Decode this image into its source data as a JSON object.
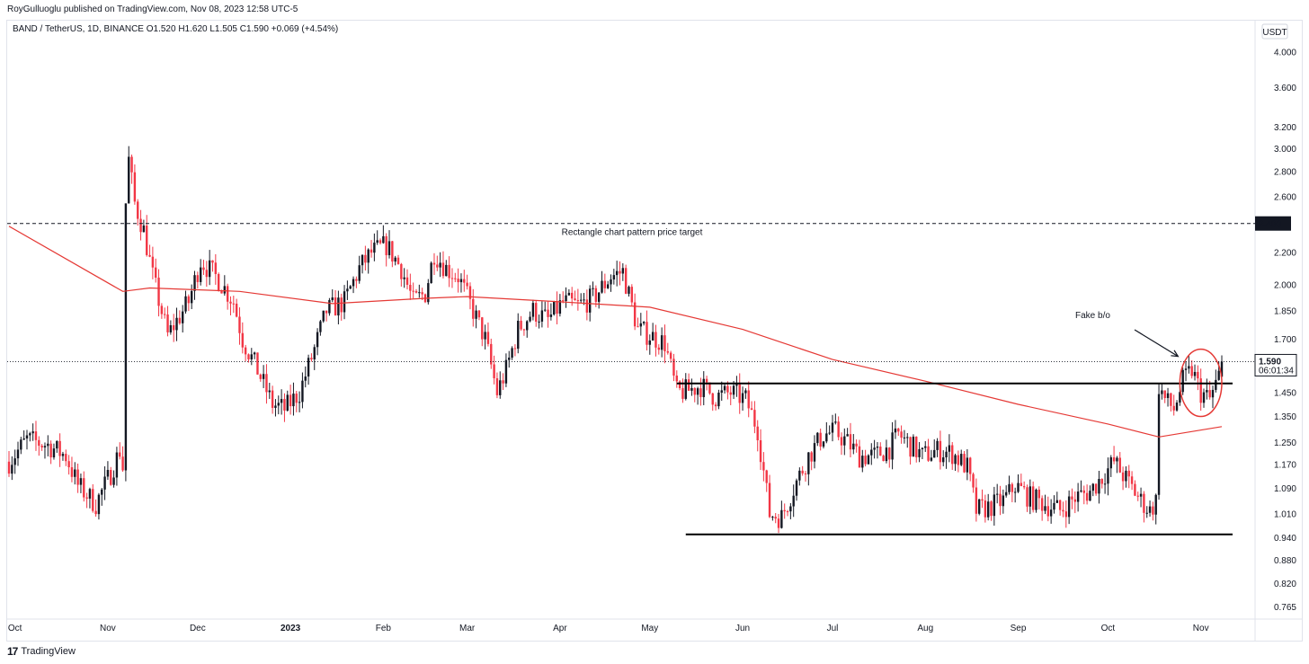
{
  "header": {
    "published": "RoyGulluoglu published on TradingView.com, Nov 08, 2023 12:58 UTC-5",
    "symbol_line": "BAND / TetherUS, 1D, BINANCE  O1.520  H1.620  L1.505  C1.590  +0.069 (+4.54%)"
  },
  "footer": {
    "logo_mark": "17",
    "brand": "TradingView"
  },
  "colors": {
    "up": "#131722",
    "down": "#f23645",
    "ma": "#e53935",
    "annotation": "#000000"
  },
  "chart_data": {
    "type": "candlestick",
    "symbol": "BAND / TetherUS",
    "timeframe": "1D",
    "exchange": "BINANCE",
    "ohlc_last": {
      "open": 1.52,
      "high": 1.62,
      "low": 1.505,
      "close": 1.59,
      "change": 0.069,
      "change_pct": 4.54
    },
    "currency_label": "USDT",
    "y_scale": "log",
    "ylim": [
      0.74,
      4.3
    ],
    "y_ticks": [
      "4.000",
      "3.600",
      "3.200",
      "3.000",
      "2.800",
      "2.600",
      "2.200",
      "2.000",
      "1.850",
      "1.700",
      "1.450",
      "1.350",
      "1.250",
      "1.170",
      "1.090",
      "1.010",
      "0.940",
      "0.880",
      "0.820",
      "0.765"
    ],
    "x_ticks": [
      {
        "label": "Oct",
        "date": "2022-10-01"
      },
      {
        "label": "Nov",
        "date": "2022-11-01"
      },
      {
        "label": "Dec",
        "date": "2022-12-01"
      },
      {
        "label": "2023",
        "date": "2023-01-01",
        "bold": true
      },
      {
        "label": "Feb",
        "date": "2023-02-01"
      },
      {
        "label": "Mar",
        "date": "2023-03-01"
      },
      {
        "label": "Apr",
        "date": "2023-04-01"
      },
      {
        "label": "May",
        "date": "2023-05-01"
      },
      {
        "label": "Jun",
        "date": "2023-06-01"
      },
      {
        "label": "Jul",
        "date": "2023-07-01"
      },
      {
        "label": "Aug",
        "date": "2023-08-01"
      },
      {
        "label": "Sep",
        "date": "2023-09-01"
      },
      {
        "label": "Oct",
        "date": "2023-10-01"
      },
      {
        "label": "Nov",
        "date": "2023-11-01"
      }
    ],
    "date_range": [
      "2022-09-29",
      "2023-11-08"
    ],
    "price_path": [
      [
        "2022-09-29",
        1.18
      ],
      [
        "2022-10-05",
        1.26
      ],
      [
        "2022-10-12",
        1.24
      ],
      [
        "2022-10-18",
        1.2
      ],
      [
        "2022-10-22",
        1.1
      ],
      [
        "2022-10-28",
        1.04
      ],
      [
        "2022-11-02",
        1.14
      ],
      [
        "2022-11-05",
        1.22
      ],
      [
        "2022-11-06",
        1.16
      ],
      [
        "2022-11-07",
        2.55
      ],
      [
        "2022-11-08",
        2.9
      ],
      [
        "2022-11-10",
        2.55
      ],
      [
        "2022-11-13",
        2.35
      ],
      [
        "2022-11-16",
        2.05
      ],
      [
        "2022-11-21",
        1.72
      ],
      [
        "2022-11-28",
        1.9
      ],
      [
        "2022-12-02",
        2.15
      ],
      [
        "2022-12-08",
        2.03
      ],
      [
        "2022-12-13",
        1.9
      ],
      [
        "2022-12-16",
        1.7
      ],
      [
        "2022-12-21",
        1.55
      ],
      [
        "2022-12-26",
        1.4
      ],
      [
        "2022-12-30",
        1.38
      ],
      [
        "2023-01-04",
        1.45
      ],
      [
        "2023-01-09",
        1.65
      ],
      [
        "2023-01-13",
        1.85
      ],
      [
        "2023-01-19",
        1.9
      ],
      [
        "2023-01-24",
        2.1
      ],
      [
        "2023-01-28",
        2.2
      ],
      [
        "2023-02-02",
        2.25
      ],
      [
        "2023-02-07",
        2.1
      ],
      [
        "2023-02-11",
        1.9
      ],
      [
        "2023-02-15",
        1.95
      ],
      [
        "2023-02-18",
        2.2
      ],
      [
        "2023-02-22",
        2.1
      ],
      [
        "2023-02-26",
        2.05
      ],
      [
        "2023-03-03",
        1.85
      ],
      [
        "2023-03-07",
        1.7
      ],
      [
        "2023-03-11",
        1.45
      ],
      [
        "2023-03-14",
        1.55
      ],
      [
        "2023-03-18",
        1.75
      ],
      [
        "2023-03-23",
        1.85
      ],
      [
        "2023-03-28",
        1.8
      ],
      [
        "2023-04-02",
        1.9
      ],
      [
        "2023-04-07",
        1.88
      ],
      [
        "2023-04-12",
        1.92
      ],
      [
        "2023-04-18",
        2.05
      ],
      [
        "2023-04-22",
        2.08
      ],
      [
        "2023-04-27",
        1.75
      ],
      [
        "2023-05-01",
        1.72
      ],
      [
        "2023-05-06",
        1.68
      ],
      [
        "2023-05-10",
        1.45
      ],
      [
        "2023-05-14",
        1.46
      ],
      [
        "2023-05-18",
        1.48
      ],
      [
        "2023-05-23",
        1.43
      ],
      [
        "2023-05-28",
        1.45
      ],
      [
        "2023-06-02",
        1.42
      ],
      [
        "2023-06-06",
        1.3
      ],
      [
        "2023-06-10",
        1.01
      ],
      [
        "2023-06-14",
        1.0
      ],
      [
        "2023-06-18",
        1.09
      ],
      [
        "2023-06-23",
        1.2
      ],
      [
        "2023-06-28",
        1.28
      ],
      [
        "2023-07-02",
        1.29
      ],
      [
        "2023-07-06",
        1.25
      ],
      [
        "2023-07-10",
        1.2
      ],
      [
        "2023-07-15",
        1.2
      ],
      [
        "2023-07-20",
        1.23
      ],
      [
        "2023-07-23",
        1.28
      ],
      [
        "2023-07-27",
        1.24
      ],
      [
        "2023-07-31",
        1.2
      ],
      [
        "2023-08-05",
        1.22
      ],
      [
        "2023-08-10",
        1.21
      ],
      [
        "2023-08-15",
        1.16
      ],
      [
        "2023-08-18",
        1.02
      ],
      [
        "2023-08-22",
        1.03
      ],
      [
        "2023-08-27",
        1.05
      ],
      [
        "2023-08-31",
        1.1
      ],
      [
        "2023-09-05",
        1.06
      ],
      [
        "2023-09-10",
        1.04
      ],
      [
        "2023-09-15",
        1.02
      ],
      [
        "2023-09-20",
        1.06
      ],
      [
        "2023-09-25",
        1.08
      ],
      [
        "2023-09-30",
        1.14
      ],
      [
        "2023-10-03",
        1.18
      ],
      [
        "2023-10-07",
        1.12
      ],
      [
        "2023-10-12",
        1.05
      ],
      [
        "2023-10-15",
        1.02
      ],
      [
        "2023-10-17",
        1.05
      ],
      [
        "2023-10-18",
        1.48
      ],
      [
        "2023-10-20",
        1.42
      ],
      [
        "2023-10-23",
        1.38
      ],
      [
        "2023-10-26",
        1.5
      ],
      [
        "2023-10-29",
        1.55
      ],
      [
        "2023-11-01",
        1.45
      ],
      [
        "2023-11-04",
        1.42
      ],
      [
        "2023-11-07",
        1.52
      ],
      [
        "2023-11-08",
        1.59
      ]
    ],
    "moving_average": [
      [
        "2022-09-29",
        2.38
      ],
      [
        "2022-11-06",
        1.96
      ],
      [
        "2022-11-15",
        1.98
      ],
      [
        "2022-12-15",
        1.96
      ],
      [
        "2023-01-15",
        1.89
      ],
      [
        "2023-02-15",
        1.92
      ],
      [
        "2023-03-01",
        1.93
      ],
      [
        "2023-04-01",
        1.9
      ],
      [
        "2023-05-01",
        1.87
      ],
      [
        "2023-06-01",
        1.75
      ],
      [
        "2023-07-01",
        1.6
      ],
      [
        "2023-08-01",
        1.5
      ],
      [
        "2023-09-01",
        1.4
      ],
      [
        "2023-10-01",
        1.32
      ],
      [
        "2023-10-18",
        1.27
      ],
      [
        "2023-11-08",
        1.31
      ]
    ],
    "horizontal_levels": [
      {
        "name": "price-target-level",
        "price": 2.4,
        "style": "dashed",
        "label": "Rectangle chart pattern price target",
        "axis_label": "2.400"
      },
      {
        "name": "rectangle-top-line",
        "price": 1.49,
        "style": "solid",
        "from": "2023-05-10",
        "to": "2023-11-08"
      },
      {
        "name": "rectangle-bottom-line",
        "price": 0.95,
        "style": "solid",
        "from": "2023-05-13",
        "to": "2023-11-08"
      }
    ],
    "current_price": {
      "price": 1.59,
      "label": "1.590",
      "countdown": "06:01:34"
    },
    "annotations": [
      {
        "text": "Fake b/o",
        "type": "text-with-arrow"
      },
      {
        "type": "ellipse",
        "from": "2023-10-25",
        "to": "2023-11-08",
        "low": 1.35,
        "high": 1.65
      }
    ]
  }
}
